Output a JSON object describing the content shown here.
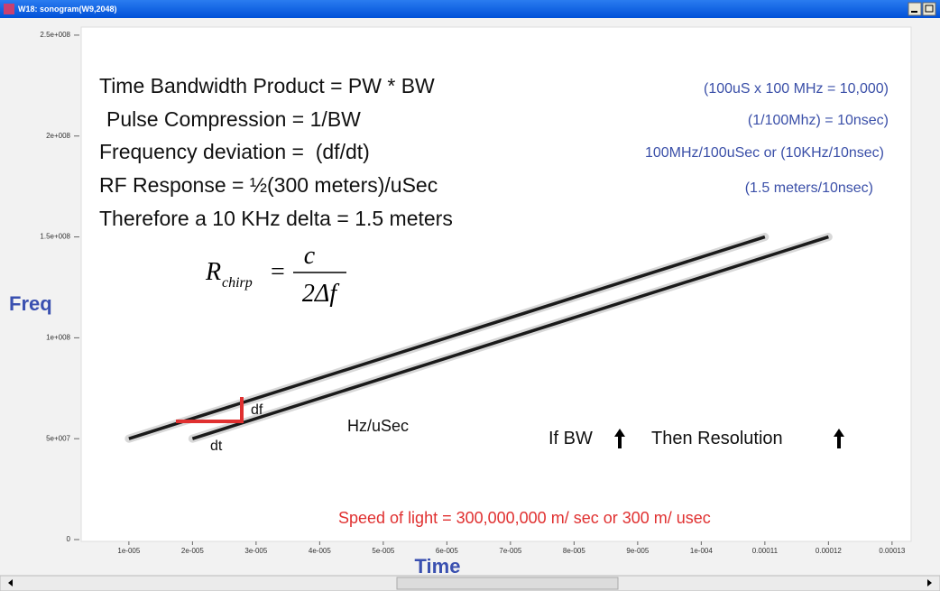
{
  "window": {
    "title": "W18: sonogram(W9,2048)"
  },
  "chart_data": {
    "type": "line",
    "xlabel": "Time",
    "ylabel": "Freq",
    "series": [
      {
        "color": "#1a1a1a",
        "x": [
          1e-05,
          0.00011
        ],
        "values": [
          50000000,
          150000000
        ]
      },
      {
        "color": "#1a1a1a",
        "x": [
          2e-05,
          0.00012
        ],
        "values": [
          50000000,
          150000000
        ]
      }
    ],
    "xlim": [
      2.5e-06,
      0.000133
    ],
    "ylim": [
      0,
      254000000
    ],
    "xticks": [
      {
        "value": 1e-05,
        "label": "1e-005"
      },
      {
        "value": 2e-05,
        "label": "2e-005"
      },
      {
        "value": 3e-05,
        "label": "3e-005"
      },
      {
        "value": 4e-05,
        "label": "4e-005"
      },
      {
        "value": 5e-05,
        "label": "5e-005"
      },
      {
        "value": 6e-05,
        "label": "6e-005"
      },
      {
        "value": 7e-05,
        "label": "7e-005"
      },
      {
        "value": 8e-05,
        "label": "8e-005"
      },
      {
        "value": 9e-05,
        "label": "9e-005"
      },
      {
        "value": 0.0001,
        "label": "1e-004"
      },
      0.00011,
      0.00012,
      0.00013
    ],
    "yticks": [
      0,
      {
        "value": 50000000,
        "label": "5e+007"
      },
      {
        "value": 100000000,
        "label": "1e+008"
      },
      {
        "value": 150000000,
        "label": "1.5e+008"
      },
      {
        "value": 200000000,
        "label": "2e+008"
      },
      {
        "value": 250000000,
        "label": "2.5e+008"
      }
    ],
    "annotations": {
      "equations": [
        "Time Bandwidth Product = PW * BW",
        "Pulse Compression = 1/BW",
        "Frequency deviation =  (df/dt)",
        "RF Response = ½(300 meters)/uSec",
        "Therefore a 10 KHz delta = 1.5 meters"
      ],
      "examples": [
        "(100uS x 100 MHz = 10,000)",
        "(1/100Mhz) = 10nsec)",
        "100MHz/100uSec or (10KHz/10nsec)",
        "(1.5 meters/10nsec)"
      ],
      "formula": {
        "lhs": "R",
        "lhs_sub": "chirp",
        "equals": "=",
        "numerator": "c",
        "denominator": "2Δf"
      },
      "df": "df",
      "dt": "dt",
      "rate": "Hz/uSec",
      "if_bw": "If BW",
      "then_resolution": "Then Resolution",
      "speed_of_light": "Speed of light = 300,000,000 m/ sec or 300 m/ usec"
    }
  }
}
